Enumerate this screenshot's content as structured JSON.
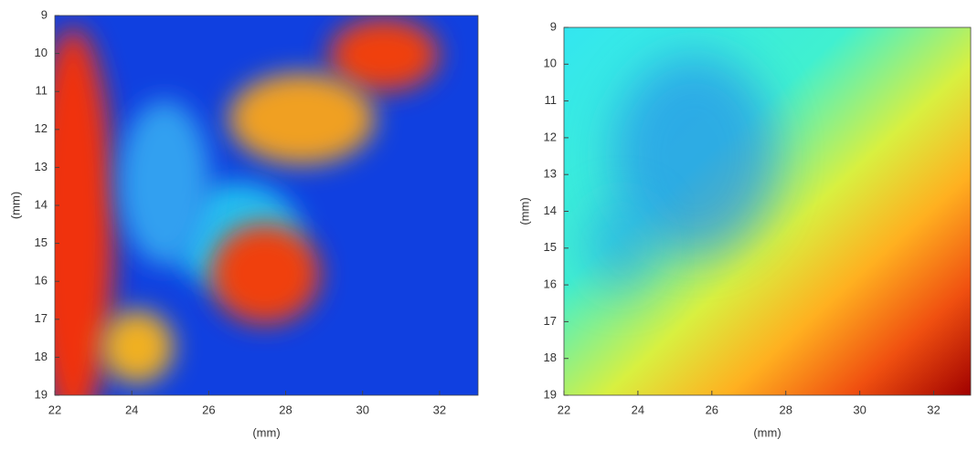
{
  "chart_data": [
    {
      "type": "heatmap",
      "xlabel": "(mm)",
      "ylabel": "(mm)",
      "xlim": [
        22,
        33
      ],
      "ylim": [
        19,
        9
      ],
      "xticks": [
        22,
        24,
        26,
        28,
        30,
        32
      ],
      "yticks": [
        9,
        10,
        11,
        12,
        13,
        14,
        15,
        16,
        17,
        18,
        19
      ]
    },
    {
      "type": "heatmap",
      "xlabel": "(mm)",
      "ylabel": "(mm)",
      "xlim": [
        22,
        33
      ],
      "ylim": [
        19,
        9
      ],
      "xticks": [
        22,
        24,
        26,
        28,
        30,
        32
      ],
      "yticks": [
        9,
        10,
        11,
        12,
        13,
        14,
        15,
        16,
        17,
        18,
        19
      ]
    }
  ]
}
